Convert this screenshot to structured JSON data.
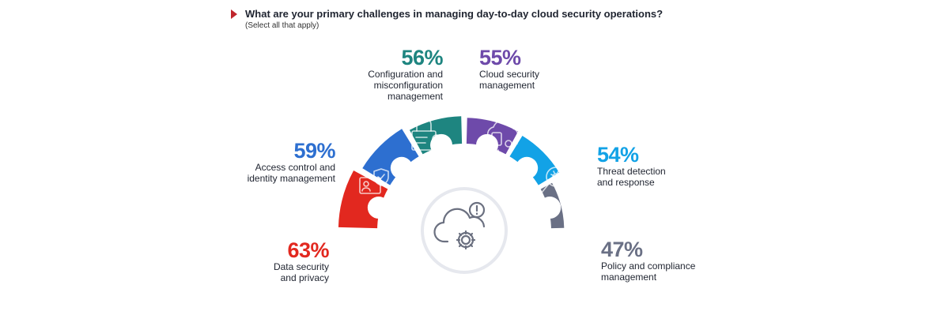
{
  "header": {
    "title": "What are your primary challenges in managing day-to-day cloud security operations?",
    "subtitle": "(Select all that apply)"
  },
  "icons": {
    "center": "cloud-gear-alert-icon"
  },
  "chart_data": {
    "type": "bar",
    "unit": "%",
    "categories": [
      "Data security and privacy",
      "Access control and identity management",
      "Configuration and misconfiguration management",
      "Cloud security management",
      "Threat detection and response",
      "Policy and compliance management"
    ],
    "values": [
      63,
      59,
      56,
      55,
      54,
      47
    ],
    "value_labels": [
      "63%",
      "59%",
      "56%",
      "55%",
      "54%",
      "47%"
    ],
    "label_text": [
      "Data security\nand privacy",
      "Access control and\nidentity management",
      "Configuration and\nmisconfiguration\nmanagement",
      "Cloud security\nmanagement",
      "Threat detection\nand response",
      "Policy and compliance\nmanagement"
    ],
    "colors": [
      "#e2281f",
      "#2d6fd0",
      "#1e8580",
      "#6e4aaa",
      "#12a2e6",
      "#6a7085"
    ],
    "icons": [
      "document-lock-icon",
      "id-card-shield-icon",
      "padlock-settings-icon",
      "cloud-key-icon",
      "magnifier-bug-icon",
      "policy-scroll-shield-icon"
    ]
  }
}
